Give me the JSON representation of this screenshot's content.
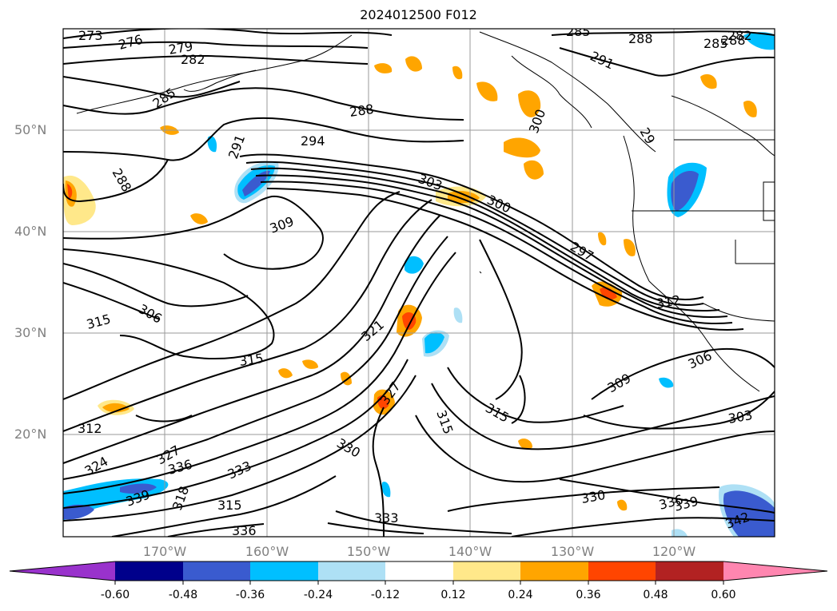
{
  "title": "2024012500 F012",
  "lat_labels": [
    "50°N",
    "40°N",
    "30°N",
    "20°N"
  ],
  "lon_labels": [
    "170°W",
    "160°W",
    "150°W",
    "140°W",
    "130°W",
    "120°W"
  ],
  "contour_labels": [
    "273",
    "276",
    "279",
    "282",
    "285",
    "288",
    "288",
    "285",
    "291",
    "282",
    "285",
    "288",
    "291",
    "294",
    "288",
    "300",
    "29",
    "303",
    "300",
    "309",
    "297",
    "306",
    "315",
    "315",
    "312",
    "324",
    "327",
    "327",
    "330",
    "333",
    "333",
    "336",
    "336",
    "339",
    "315",
    "318",
    "315",
    "309",
    "306",
    "303",
    "315",
    "330",
    "336",
    "339",
    "342",
    "312",
    "321"
  ],
  "colorbar": {
    "ticks": [
      "-0.60",
      "-0.48",
      "-0.36",
      "-0.24",
      "-0.12",
      "0.12",
      "0.24",
      "0.36",
      "0.48",
      "0.60"
    ],
    "colors": [
      "#9932cc",
      "#00008b",
      "#3a5bcf",
      "#00bfff",
      "#aee0f5",
      "#ffffff",
      "#ffe88a",
      "#ffa500",
      "#ff4500",
      "#b22222",
      "#ff86b0"
    ]
  }
}
